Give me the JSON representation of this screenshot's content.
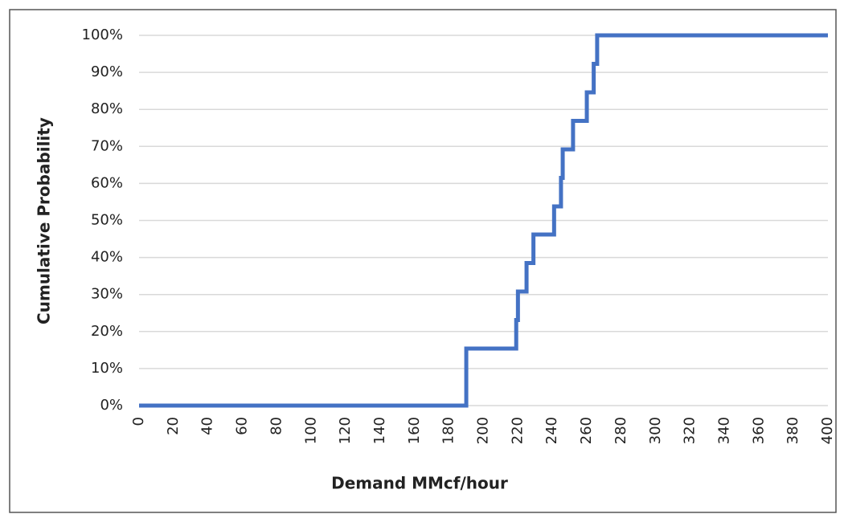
{
  "chart_data": {
    "type": "line",
    "xlabel": "Demand MMcf/hour",
    "ylabel": "Cumulative Probability",
    "x": [
      0,
      190,
      190,
      219,
      219,
      220,
      220,
      225,
      225,
      229,
      229,
      241,
      241,
      245,
      245,
      246,
      246,
      252,
      252,
      260,
      260,
      264,
      264,
      266,
      266,
      400
    ],
    "series": [
      {
        "color": "#4472c4",
        "values": [
          0,
          0,
          15.4,
          15.4,
          23.1,
          23.1,
          30.8,
          30.8,
          38.5,
          38.5,
          46.2,
          46.2,
          53.8,
          53.8,
          61.5,
          61.5,
          69.2,
          69.2,
          76.9,
          76.9,
          84.6,
          84.6,
          92.3,
          92.3,
          100,
          100
        ]
      }
    ],
    "xlim": [
      0,
      400
    ],
    "xticks": [
      0,
      20,
      40,
      60,
      80,
      100,
      120,
      140,
      160,
      180,
      200,
      220,
      240,
      260,
      280,
      300,
      320,
      340,
      360,
      380,
      400
    ],
    "ylim": [
      0,
      100
    ],
    "yticks": [
      {
        "value": 0,
        "label": "0%"
      },
      {
        "value": 10,
        "label": "10%"
      },
      {
        "value": 20,
        "label": "20%"
      },
      {
        "value": 30,
        "label": "30%"
      },
      {
        "value": 40,
        "label": "40%"
      },
      {
        "value": 50,
        "label": "50%"
      },
      {
        "value": 60,
        "label": "60%"
      },
      {
        "value": 70,
        "label": "70%"
      },
      {
        "value": 80,
        "label": "80%"
      },
      {
        "value": 90,
        "label": "90%"
      },
      {
        "value": 100,
        "label": "100%"
      }
    ],
    "grid": true
  }
}
